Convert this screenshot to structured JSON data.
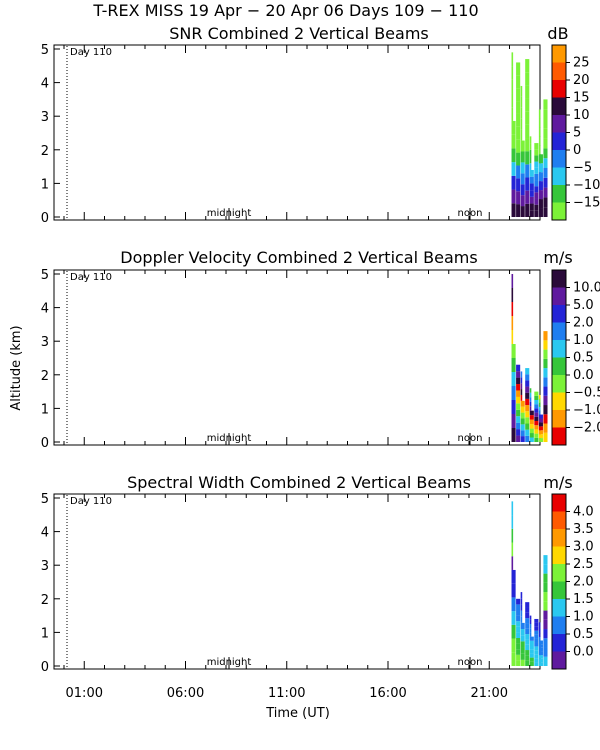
{
  "header": {
    "title": "T-REX MISS   19 Apr − 20 Apr 06 Days 109 − 110"
  },
  "axes": {
    "xlabel": "Time (UT)",
    "ylabel": "Altitude (km)",
    "xticks": [
      "01:00",
      "06:00",
      "11:00",
      "16:00",
      "21:00"
    ],
    "yticks": [
      "0",
      "1",
      "2",
      "3",
      "4",
      "5"
    ],
    "markers": {
      "midnight": "midnight",
      "noon": "noon",
      "day": "Day 110"
    }
  },
  "chart_data": [
    {
      "type": "heatmap",
      "title": "SNR Combined 2 Vertical Beams",
      "ylim": [
        0,
        5
      ],
      "xlim_hours_ut": [
        0,
        24
      ],
      "colorbar": {
        "unit": "dB",
        "labels": [
          "25",
          "20",
          "15",
          "10",
          "5",
          "0",
          "−5",
          "−10",
          "−15"
        ],
        "colors": [
          "#ff9900",
          "#ff5a00",
          "#e80000",
          "#2a0a3a",
          "#5f1a9e",
          "#2424d6",
          "#1f7ef0",
          "#2ac8f0",
          "#36c63a",
          "#7cf238"
        ]
      },
      "data_window_hours_ut": [
        22.1,
        23.9
      ],
      "profile_top_km": [
        4.9,
        4.6,
        3.9,
        4.7,
        2.4,
        2.2,
        3.2,
        3.5
      ]
    },
    {
      "type": "heatmap",
      "title": "Doppler Velocity Combined 2 Vertical Beams",
      "ylim": [
        0,
        5
      ],
      "xlim_hours_ut": [
        0,
        24
      ],
      "colorbar": {
        "unit": "m/s",
        "labels": [
          "10.0",
          "5.0",
          "2.0",
          "1.0",
          "0.5",
          "0.0",
          "−0.5",
          "−1.0",
          "−2.0"
        ],
        "colors": [
          "#2a0a3a",
          "#5f1a9e",
          "#2424d6",
          "#1f7ef0",
          "#2ac8f0",
          "#36c63a",
          "#7cf238",
          "#ffd800",
          "#ff9900",
          "#e80000"
        ]
      },
      "data_window_hours_ut": [
        22.1,
        23.9
      ],
      "profile_top_km": [
        5.0,
        2.3,
        2.1,
        2.2,
        1.6,
        1.5,
        1.4,
        3.3
      ]
    },
    {
      "type": "heatmap",
      "title": "Spectral Width Combined 2 Vertical Beams",
      "ylim": [
        0,
        5
      ],
      "xlim_hours_ut": [
        0,
        24
      ],
      "colorbar": {
        "unit": "m/s",
        "labels": [
          "4.0",
          "3.5",
          "3.0",
          "2.5",
          "2.0",
          "1.5",
          "1.0",
          "0.5",
          "0.0"
        ],
        "colors": [
          "#e80000",
          "#ff5a00",
          "#ff9900",
          "#ffd800",
          "#7cf238",
          "#36c63a",
          "#2ac8f0",
          "#1f7ef0",
          "#2424d6",
          "#5f1a9e"
        ]
      },
      "data_window_hours_ut": [
        22.1,
        23.9
      ],
      "profile_top_km": [
        4.9,
        2.0,
        2.2,
        1.9,
        1.5,
        1.4,
        1.3,
        3.3
      ]
    }
  ]
}
